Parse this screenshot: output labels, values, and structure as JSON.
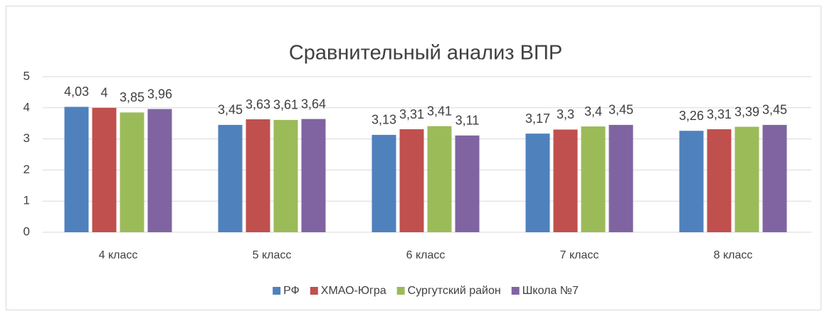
{
  "chart_data": {
    "type": "bar",
    "title": "Сравнительный анализ ВПР",
    "categories": [
      "4 класс",
      "5 класс",
      "6 класс",
      "7 класс",
      "8 класс"
    ],
    "series": [
      {
        "name": "РФ",
        "color": "#4f81bd",
        "values": [
          4.03,
          3.45,
          3.13,
          3.17,
          3.26
        ],
        "value_labels": [
          "4,03",
          "3,45",
          "3,13",
          "3,17",
          "3,26"
        ]
      },
      {
        "name": "ХМАО-Югра",
        "color": "#c0504d",
        "values": [
          4,
          3.63,
          3.31,
          3.3,
          3.31
        ],
        "value_labels": [
          "4",
          "3,63",
          "3,31",
          "3,3",
          "3,31"
        ]
      },
      {
        "name": "Сургутский район",
        "color": "#9bbb59",
        "values": [
          3.85,
          3.61,
          3.41,
          3.4,
          3.39
        ],
        "value_labels": [
          "3,85",
          "3,61",
          "3,41",
          "3,4",
          "3,39"
        ]
      },
      {
        "name": "Школа №7",
        "color": "#8064a2",
        "values": [
          3.96,
          3.64,
          3.11,
          3.45,
          3.45
        ],
        "value_labels": [
          "3,96",
          "3,64",
          "3,11",
          "3,45",
          "3,45"
        ]
      }
    ],
    "ylim": [
      0,
      5
    ],
    "yticks": [
      0,
      1,
      2,
      3,
      4,
      5
    ],
    "grid": true,
    "legend": "bottom"
  }
}
